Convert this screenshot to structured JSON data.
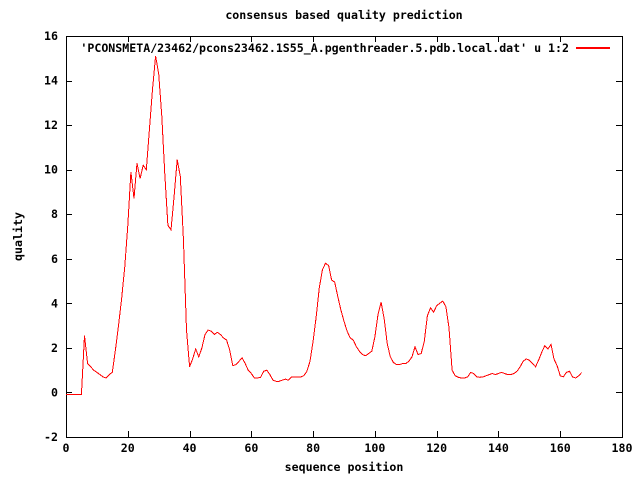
{
  "title": "consensus based quality prediction",
  "legend": {
    "label": "'PCONSMETA/23462/pcons23462.1S55_A.pgenthreader.5.pdb.local.dat' u 1:2"
  },
  "colors": {
    "series": "#ff0000",
    "axis": "#000000",
    "background": "#ffffff"
  },
  "chart_data": {
    "type": "line",
    "title": "consensus based quality prediction",
    "xlabel": "sequence position",
    "ylabel": "quality",
    "xlim": [
      0,
      180
    ],
    "ylim": [
      -2,
      16
    ],
    "x_ticks": [
      0,
      20,
      40,
      60,
      80,
      100,
      120,
      140,
      160,
      180
    ],
    "y_ticks": [
      -2,
      0,
      2,
      4,
      6,
      8,
      10,
      12,
      14,
      16
    ],
    "grid": false,
    "legend_position": "top-right-inside",
    "series": [
      {
        "name": "'PCONSMETA/23462/pcons23462.1S55_A.pgenthreader.5.pdb.local.dat' u 1:2",
        "color": "#ff0000",
        "x_start": 0,
        "x_step": 1,
        "values": [
          -0.1,
          -0.1,
          -0.1,
          -0.1,
          -0.1,
          -0.1,
          2.55,
          1.3,
          1.15,
          1.0,
          0.9,
          0.8,
          0.7,
          0.65,
          0.8,
          0.9,
          1.9,
          3.0,
          4.2,
          5.6,
          7.5,
          9.9,
          8.7,
          10.3,
          9.6,
          10.2,
          10.0,
          11.8,
          13.6,
          15.1,
          14.3,
          12.4,
          9.8,
          7.5,
          7.3,
          8.8,
          10.45,
          9.7,
          6.9,
          2.8,
          1.15,
          1.5,
          1.95,
          1.6,
          2.0,
          2.6,
          2.8,
          2.75,
          2.6,
          2.7,
          2.6,
          2.45,
          2.35,
          1.9,
          1.2,
          1.25,
          1.4,
          1.55,
          1.3,
          1.0,
          0.85,
          0.65,
          0.65,
          0.68,
          0.95,
          1.0,
          0.8,
          0.55,
          0.5,
          0.5,
          0.55,
          0.6,
          0.55,
          0.7,
          0.7,
          0.7,
          0.7,
          0.75,
          0.95,
          1.4,
          2.3,
          3.4,
          4.7,
          5.5,
          5.8,
          5.7,
          5.05,
          4.95,
          4.3,
          3.7,
          3.2,
          2.75,
          2.45,
          2.35,
          2.05,
          1.85,
          1.7,
          1.65,
          1.75,
          1.85,
          2.5,
          3.5,
          4.05,
          3.3,
          2.2,
          1.6,
          1.35,
          1.25,
          1.25,
          1.3,
          1.3,
          1.4,
          1.6,
          2.05,
          1.7,
          1.75,
          2.3,
          3.45,
          3.8,
          3.6,
          3.9,
          4.0,
          4.1,
          3.85,
          2.9,
          1.0,
          0.75,
          0.68,
          0.65,
          0.65,
          0.7,
          0.9,
          0.85,
          0.7,
          0.68,
          0.7,
          0.75,
          0.8,
          0.85,
          0.8,
          0.85,
          0.9,
          0.85,
          0.8,
          0.8,
          0.85,
          0.95,
          1.15,
          1.4,
          1.5,
          1.45,
          1.3,
          1.15,
          1.45,
          1.8,
          2.1,
          1.95,
          2.15,
          1.5,
          1.2,
          0.75,
          0.7,
          0.9,
          0.95,
          0.7,
          0.65,
          0.75,
          0.9
        ]
      }
    ]
  }
}
